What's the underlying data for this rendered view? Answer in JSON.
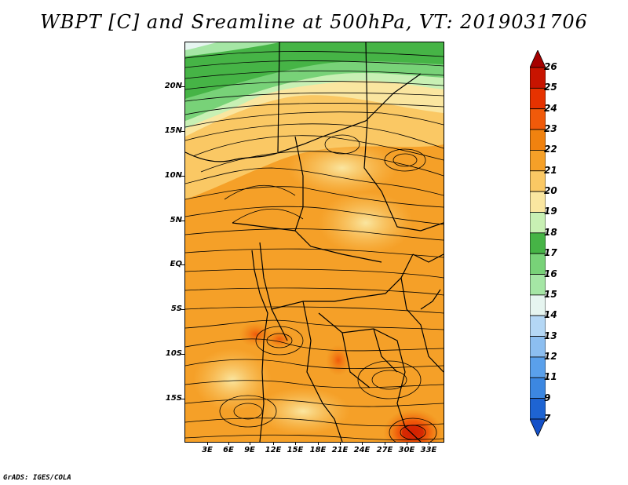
{
  "title": "WBPT [C] and Sreamline at 500hPa, VT: 2019031706",
  "footer": "GrADS: IGES/COLA",
  "map": {
    "lat_labels": [
      "20N",
      "15N",
      "10N",
      "5N",
      "EQ",
      "5S",
      "10S",
      "15S"
    ],
    "lon_labels": [
      "3E",
      "6E",
      "9E",
      "12E",
      "15E",
      "18E",
      "21E",
      "24E",
      "27E",
      "30E",
      "33E"
    ]
  },
  "colorbar": {
    "levels": [
      "26",
      "25",
      "24",
      "23",
      "22",
      "21",
      "20",
      "19",
      "18",
      "17",
      "16",
      "15",
      "14",
      "13",
      "12",
      "11",
      "9",
      "7"
    ],
    "colors": [
      "#a50000",
      "#c81400",
      "#e63200",
      "#f05a0a",
      "#f0820f",
      "#f5a028",
      "#fac864",
      "#fae6a0",
      "#c8f0b4",
      "#46b446",
      "#78d278",
      "#a5e6a5",
      "#e6f5f0",
      "#b4d7f5",
      "#8cbef0",
      "#5aa0eb",
      "#3c87e1",
      "#1e64d2",
      "#1450c8"
    ]
  }
}
